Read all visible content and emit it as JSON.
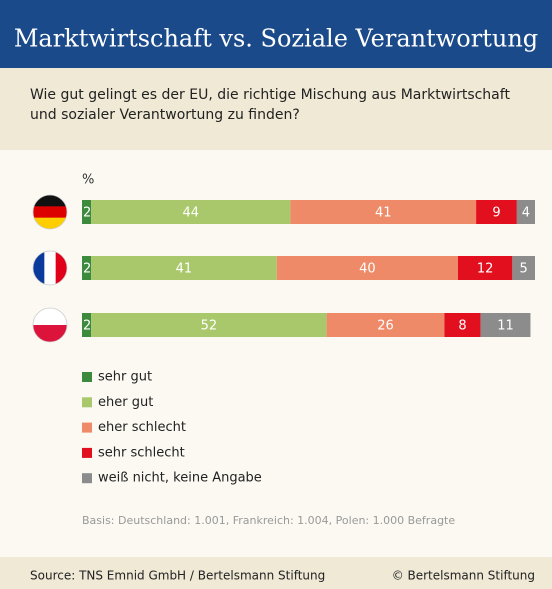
{
  "chart_data": {
    "type": "stacked_bar_horizontal",
    "title": "Marktwirtschaft vs. Soziale Verantwortung",
    "subtitle": [
      "Wie gut gelingt es der EU, die richtige Mischung aus Marktwirtschaft",
      "und sozialer Verantwortung zu finden?"
    ],
    "unit_label": "%",
    "categories": [
      null,
      null,
      null
    ],
    "series": [
      {
        "name": "sehr gut",
        "color": "#3b8a3e",
        "values": [
          2,
          2,
          2
        ]
      },
      {
        "name": "eher gut",
        "color": "#a9c86b",
        "values": [
          44,
          41,
          52
        ]
      },
      {
        "name": "eher schlecht",
        "color": "#ef8a69",
        "values": [
          41,
          40,
          26
        ]
      },
      {
        "name": "sehr schlecht",
        "color": "#e2101f",
        "values": [
          9,
          12,
          8
        ]
      },
      {
        "name": "weiß nicht, keine Angabe",
        "color": "#8c8c8c",
        "values": [
          4,
          5,
          11
        ]
      }
    ],
    "xlim": [
      0,
      100
    ],
    "note": "Basis:   Deutschland: 1.001,   Frankreich: 1.004,   Polen: 1.000 Befragte",
    "source": "Source: TNS Emnid GmbH / Bertelsmann Stiftung",
    "copyright": "© Bertelsmann Stiftung"
  }
}
